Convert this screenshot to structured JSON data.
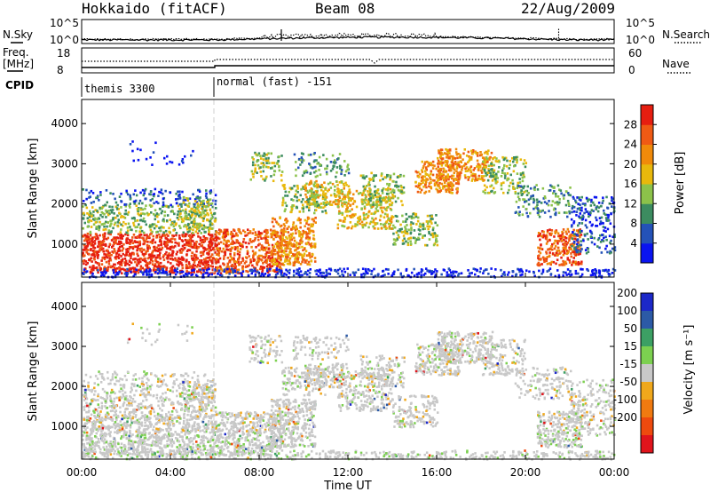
{
  "header": {
    "station": "Hokkaido (fitACF)",
    "beam": "Beam 08",
    "date": "22/Aug/2009"
  },
  "chart_data": [
    {
      "type": "line",
      "panel": "noise",
      "left_label": "N.Sky",
      "right_label": "N.Search",
      "left_ticks": [
        "10^5",
        "10^0"
      ],
      "right_ticks": [
        "10^5",
        "10^0"
      ],
      "series": [
        {
          "name": "N.Sky",
          "style": "solid"
        },
        {
          "name": "N.Search",
          "style": "dotted"
        }
      ]
    },
    {
      "type": "line",
      "panel": "frequency",
      "left_label_lines": [
        "Freq.",
        "[MHz]"
      ],
      "right_label": "Nave",
      "left_ticks": [
        "18",
        "8"
      ],
      "right_ticks": [
        "60",
        "0"
      ],
      "series": [
        {
          "name": "Freq.",
          "style": "solid"
        },
        {
          "name": "Nave",
          "style": "dotted"
        }
      ]
    },
    {
      "type": "table",
      "panel": "cpid",
      "label": "CPID",
      "segments": [
        {
          "name": "themis 3300",
          "start_hour": 0
        },
        {
          "name": "normal (fast) -151",
          "start_hour": 6
        }
      ]
    },
    {
      "type": "heatmap",
      "panel": "power",
      "ylabel": "Slant Range [km]",
      "yticks": [
        "1000",
        "2000",
        "3000",
        "4000"
      ],
      "ylim": [
        180,
        4600
      ],
      "colorbar_label": "Power [dB]",
      "colorbar_ticks": [
        "4",
        "8",
        "12",
        "16",
        "20",
        "24",
        "28"
      ],
      "colorbar_colors": [
        "#0a14f0",
        "#2452b8",
        "#3c8c60",
        "#8cc24a",
        "#e8b80c",
        "#f08a0a",
        "#ef5a14",
        "#e61e10"
      ]
    },
    {
      "type": "heatmap",
      "panel": "velocity",
      "ylabel": "Slant Range [km]",
      "yticks": [
        "1000",
        "2000",
        "3000",
        "4000"
      ],
      "ylim": [
        180,
        4600
      ],
      "colorbar_label": "Velocity [m s⁻¹]",
      "colorbar_ticks": [
        "200",
        "100",
        "50",
        "15",
        "-15",
        "-50",
        "-100",
        "-200"
      ],
      "colorbar_colors": [
        "#1c28c8",
        "#2c5aa6",
        "#3ca064",
        "#7cd050",
        "#c8c8c8",
        "#f0a81c",
        "#f07a10",
        "#ee4a0e",
        "#e0141c"
      ]
    }
  ],
  "xaxis": {
    "label": "Time UT",
    "ticks": [
      "00:00",
      "04:00",
      "08:00",
      "12:00",
      "16:00",
      "20:00",
      "00:00"
    ],
    "xlim_hours": [
      0,
      24
    ]
  }
}
